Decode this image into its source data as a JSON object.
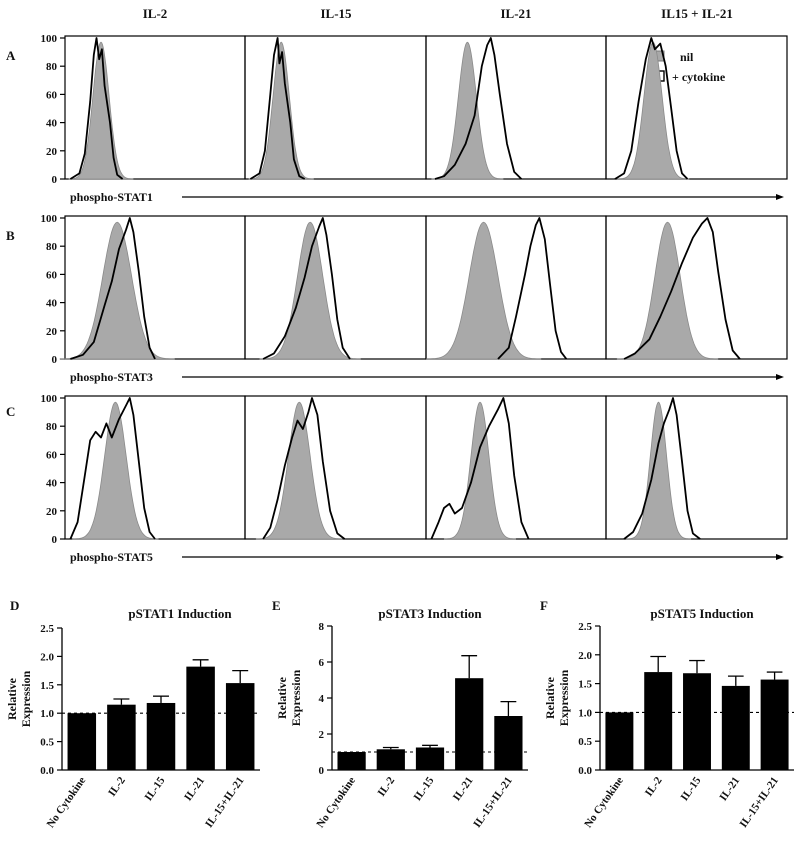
{
  "colors": {
    "nil_fill": "#a9a9a9",
    "nil_stroke": "#8a8a8a",
    "cytokine_line": "#000000",
    "bar": "#000000"
  },
  "columns": [
    "IL-2",
    "IL-15",
    "IL-21",
    "IL15 + IL-21"
  ],
  "histogram_yticks": [
    "0",
    "20",
    "40",
    "60",
    "80",
    "100"
  ],
  "legend": {
    "nil": "nil",
    "cytokine": "+ cytokine"
  },
  "chart_data": [
    {
      "type": "area",
      "panel": "A",
      "xlabel": "phospho-STAT1",
      "ylim": [
        0,
        100
      ],
      "subpanels": [
        {
          "title": "IL-2",
          "nil": {
            "mu": 0.2,
            "sigma": 0.045,
            "peak": 97
          },
          "cytokine": [
            [
              0.03,
              0
            ],
            [
              0.08,
              4
            ],
            [
              0.11,
              18
            ],
            [
              0.14,
              55
            ],
            [
              0.16,
              88
            ],
            [
              0.175,
              100
            ],
            [
              0.19,
              85
            ],
            [
              0.205,
              92
            ],
            [
              0.22,
              66
            ],
            [
              0.25,
              40
            ],
            [
              0.27,
              15
            ],
            [
              0.29,
              3
            ],
            [
              0.32,
              0
            ]
          ]
        },
        {
          "title": "IL-15",
          "nil": {
            "mu": 0.2,
            "sigma": 0.045,
            "peak": 97
          },
          "cytokine": [
            [
              0.03,
              0
            ],
            [
              0.08,
              4
            ],
            [
              0.11,
              20
            ],
            [
              0.14,
              60
            ],
            [
              0.16,
              88
            ],
            [
              0.18,
              100
            ],
            [
              0.19,
              82
            ],
            [
              0.205,
              90
            ],
            [
              0.22,
              68
            ],
            [
              0.25,
              40
            ],
            [
              0.27,
              14
            ],
            [
              0.3,
              2
            ],
            [
              0.33,
              0
            ]
          ]
        },
        {
          "title": "IL-21",
          "nil": {
            "mu": 0.23,
            "sigma": 0.05,
            "peak": 97
          },
          "cytokine": [
            [
              0.05,
              0
            ],
            [
              0.1,
              2
            ],
            [
              0.16,
              10
            ],
            [
              0.22,
              25
            ],
            [
              0.27,
              45
            ],
            [
              0.31,
              80
            ],
            [
              0.34,
              95
            ],
            [
              0.36,
              100
            ],
            [
              0.38,
              88
            ],
            [
              0.41,
              60
            ],
            [
              0.45,
              25
            ],
            [
              0.49,
              5
            ],
            [
              0.53,
              0
            ]
          ]
        },
        {
          "title": "IL15 + IL-21",
          "nil": {
            "mu": 0.26,
            "sigma": 0.05,
            "peak": 97
          },
          "cytokine": [
            [
              0.05,
              0
            ],
            [
              0.1,
              4
            ],
            [
              0.14,
              20
            ],
            [
              0.18,
              55
            ],
            [
              0.22,
              85
            ],
            [
              0.25,
              100
            ],
            [
              0.27,
              92
            ],
            [
              0.3,
              96
            ],
            [
              0.33,
              80
            ],
            [
              0.36,
              50
            ],
            [
              0.39,
              20
            ],
            [
              0.42,
              4
            ],
            [
              0.45,
              0
            ]
          ]
        }
      ]
    },
    {
      "type": "area",
      "panel": "B",
      "xlabel": "phospho-STAT3",
      "ylim": [
        0,
        100
      ],
      "subpanels": [
        {
          "title": "IL-2",
          "nil": {
            "mu": 0.29,
            "sigma": 0.08,
            "peak": 97
          },
          "cytokine": [
            [
              0.03,
              0
            ],
            [
              0.1,
              3
            ],
            [
              0.16,
              12
            ],
            [
              0.22,
              38
            ],
            [
              0.26,
              55
            ],
            [
              0.3,
              78
            ],
            [
              0.34,
              92
            ],
            [
              0.36,
              100
            ],
            [
              0.38,
              90
            ],
            [
              0.41,
              62
            ],
            [
              0.44,
              30
            ],
            [
              0.47,
              8
            ],
            [
              0.5,
              0
            ]
          ]
        },
        {
          "title": "IL-15",
          "nil": {
            "mu": 0.36,
            "sigma": 0.07,
            "peak": 97
          },
          "cytokine": [
            [
              0.1,
              0
            ],
            [
              0.16,
              4
            ],
            [
              0.22,
              16
            ],
            [
              0.28,
              36
            ],
            [
              0.33,
              58
            ],
            [
              0.37,
              80
            ],
            [
              0.41,
              94
            ],
            [
              0.43,
              100
            ],
            [
              0.45,
              88
            ],
            [
              0.48,
              60
            ],
            [
              0.51,
              28
            ],
            [
              0.54,
              8
            ],
            [
              0.58,
              0
            ]
          ]
        },
        {
          "title": "IL-21",
          "nil": {
            "mu": 0.32,
            "sigma": 0.08,
            "peak": 97
          },
          "cytokine": [
            [
              0.4,
              0
            ],
            [
              0.46,
              8
            ],
            [
              0.5,
              30
            ],
            [
              0.55,
              60
            ],
            [
              0.58,
              80
            ],
            [
              0.61,
              95
            ],
            [
              0.63,
              100
            ],
            [
              0.66,
              85
            ],
            [
              0.69,
              52
            ],
            [
              0.72,
              20
            ],
            [
              0.75,
              5
            ],
            [
              0.78,
              0
            ]
          ]
        },
        {
          "title": "IL15 + IL-21",
          "nil": {
            "mu": 0.34,
            "sigma": 0.07,
            "peak": 97
          },
          "cytokine": [
            [
              0.1,
              0
            ],
            [
              0.16,
              4
            ],
            [
              0.24,
              14
            ],
            [
              0.3,
              30
            ],
            [
              0.36,
              48
            ],
            [
              0.42,
              68
            ],
            [
              0.48,
              86
            ],
            [
              0.53,
              96
            ],
            [
              0.56,
              100
            ],
            [
              0.59,
              90
            ],
            [
              0.62,
              62
            ],
            [
              0.66,
              28
            ],
            [
              0.7,
              6
            ],
            [
              0.74,
              0
            ]
          ]
        }
      ]
    },
    {
      "type": "area",
      "panel": "C",
      "xlabel": "phospho-STAT5",
      "ylim": [
        0,
        100
      ],
      "subpanels": [
        {
          "title": "IL-2",
          "nil": {
            "mu": 0.28,
            "sigma": 0.06,
            "peak": 97
          },
          "cytokine": [
            [
              0.03,
              0
            ],
            [
              0.07,
              12
            ],
            [
              0.11,
              45
            ],
            [
              0.14,
              70
            ],
            [
              0.17,
              76
            ],
            [
              0.2,
              72
            ],
            [
              0.23,
              82
            ],
            [
              0.26,
              72
            ],
            [
              0.3,
              85
            ],
            [
              0.34,
              95
            ],
            [
              0.36,
              100
            ],
            [
              0.38,
              88
            ],
            [
              0.41,
              55
            ],
            [
              0.44,
              22
            ],
            [
              0.47,
              5
            ],
            [
              0.5,
              0
            ]
          ]
        },
        {
          "title": "IL-15",
          "nil": {
            "mu": 0.3,
            "sigma": 0.06,
            "peak": 97
          },
          "cytokine": [
            [
              0.1,
              0
            ],
            [
              0.14,
              8
            ],
            [
              0.18,
              28
            ],
            [
              0.22,
              52
            ],
            [
              0.26,
              72
            ],
            [
              0.29,
              84
            ],
            [
              0.32,
              78
            ],
            [
              0.35,
              90
            ],
            [
              0.37,
              100
            ],
            [
              0.4,
              88
            ],
            [
              0.43,
              55
            ],
            [
              0.47,
              20
            ],
            [
              0.51,
              4
            ],
            [
              0.55,
              0
            ]
          ]
        },
        {
          "title": "IL-21",
          "nil": {
            "mu": 0.3,
            "sigma": 0.05,
            "peak": 97
          },
          "cytokine": [
            [
              0.03,
              0
            ],
            [
              0.07,
              12
            ],
            [
              0.1,
              22
            ],
            [
              0.13,
              25
            ],
            [
              0.16,
              18
            ],
            [
              0.2,
              22
            ],
            [
              0.25,
              40
            ],
            [
              0.3,
              65
            ],
            [
              0.35,
              80
            ],
            [
              0.4,
              92
            ],
            [
              0.43,
              100
            ],
            [
              0.46,
              82
            ],
            [
              0.49,
              45
            ],
            [
              0.53,
              12
            ],
            [
              0.57,
              0
            ]
          ]
        },
        {
          "title": "IL15 + IL-21",
          "nil": {
            "mu": 0.29,
            "sigma": 0.045,
            "peak": 97
          },
          "cytokine": [
            [
              0.1,
              0
            ],
            [
              0.15,
              5
            ],
            [
              0.2,
              18
            ],
            [
              0.25,
              42
            ],
            [
              0.29,
              68
            ],
            [
              0.32,
              82
            ],
            [
              0.35,
              92
            ],
            [
              0.37,
              100
            ],
            [
              0.39,
              88
            ],
            [
              0.42,
              55
            ],
            [
              0.45,
              20
            ],
            [
              0.48,
              4
            ],
            [
              0.52,
              0
            ]
          ]
        }
      ]
    },
    {
      "type": "bar",
      "panel": "D",
      "title": "pSTAT1 Induction",
      "ylabel": "Relative Expression",
      "categories": [
        "No Cytokine",
        "IL-2",
        "IL-15",
        "IL-21",
        "IL-15+IL-21"
      ],
      "values": [
        1.0,
        1.15,
        1.18,
        1.82,
        1.53
      ],
      "errors": [
        0,
        0.1,
        0.12,
        0.12,
        0.22
      ],
      "ylim": [
        0,
        2.5
      ],
      "yticks": [
        "0.0",
        "0.5",
        "1.0",
        "1.5",
        "2.0",
        "2.5"
      ],
      "baseline": 1.0
    },
    {
      "type": "bar",
      "panel": "E",
      "title": "pSTAT3 Induction",
      "ylabel": "Relative Expression",
      "categories": [
        "No Cytokine",
        "IL-2",
        "IL-15",
        "IL-21",
        "IL-15+IL-21"
      ],
      "values": [
        1.0,
        1.15,
        1.25,
        5.1,
        3.0
      ],
      "errors": [
        0,
        0.1,
        0.12,
        1.25,
        0.8
      ],
      "ylim": [
        0,
        8
      ],
      "yticks": [
        "0",
        "2",
        "4",
        "6",
        "8"
      ],
      "baseline": 1.0
    },
    {
      "type": "bar",
      "panel": "F",
      "title": "pSTAT5 Induction",
      "ylabel": "Relative Expression",
      "categories": [
        "No Cytokine",
        "IL-2",
        "IL-15",
        "IL-21",
        "IL-15+IL-21"
      ],
      "values": [
        1.0,
        1.7,
        1.68,
        1.46,
        1.57
      ],
      "errors": [
        0,
        0.27,
        0.22,
        0.17,
        0.13
      ],
      "ylim": [
        0,
        2.5
      ],
      "yticks": [
        "0.0",
        "0.5",
        "1.0",
        "1.5",
        "2.0",
        "2.5"
      ],
      "baseline": 1.0
    }
  ]
}
